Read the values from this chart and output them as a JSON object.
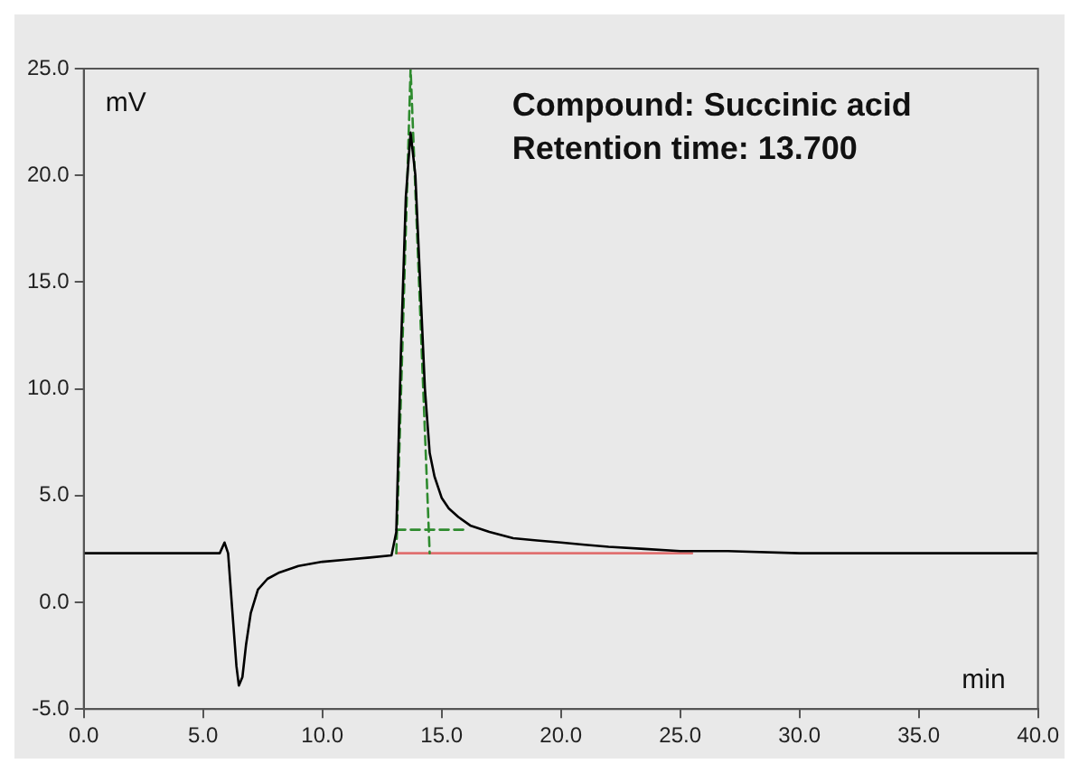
{
  "chart_data": {
    "type": "line",
    "xlabel": "min",
    "ylabel": "mV",
    "annotations": [
      "Compound: Succinic acid",
      "Retention time: 13.700"
    ],
    "xlim": [
      0,
      40
    ],
    "ylim": [
      -5,
      25
    ],
    "xticks": [
      {
        "value": 0,
        "label": "0.0"
      },
      {
        "value": 5,
        "label": "5.0"
      },
      {
        "value": 10,
        "label": "10.0"
      },
      {
        "value": 15,
        "label": "15.0"
      },
      {
        "value": 20,
        "label": "20.0"
      },
      {
        "value": 25,
        "label": "25.0"
      },
      {
        "value": 30,
        "label": "30.0"
      },
      {
        "value": 35,
        "label": "35.0"
      },
      {
        "value": 40,
        "label": "40.0"
      }
    ],
    "yticks": [
      {
        "value": -5,
        "label": "-5.0"
      },
      {
        "value": 0,
        "label": "0.0"
      },
      {
        "value": 5,
        "label": "5.0"
      },
      {
        "value": 10,
        "label": "10.0"
      },
      {
        "value": 15,
        "label": "15.0"
      },
      {
        "value": 20,
        "label": "20.0"
      },
      {
        "value": 25,
        "label": "25.0"
      }
    ],
    "grid": false,
    "legend": false,
    "marker": "none",
    "series": [
      {
        "color": "#000000",
        "line_style": "solid",
        "x": [
          0,
          5.7,
          5.9,
          6.05,
          6.2,
          6.4,
          6.5,
          6.65,
          6.8,
          7.0,
          7.3,
          7.7,
          8.2,
          9,
          10,
          11,
          12,
          12.9,
          13.1,
          13.3,
          13.5,
          13.7,
          13.9,
          14.1,
          14.3,
          14.5,
          14.7,
          15.0,
          15.3,
          15.7,
          16.2,
          17,
          18,
          19,
          20,
          21,
          22,
          23.5,
          25,
          27,
          30,
          35,
          40
        ],
        "values": [
          2.3,
          2.3,
          2.8,
          2.3,
          0,
          -3,
          -3.9,
          -3.5,
          -2,
          -0.5,
          0.6,
          1.1,
          1.4,
          1.7,
          1.9,
          2.0,
          2.1,
          2.2,
          3.3,
          12,
          19,
          22,
          20,
          15,
          10,
          7,
          5.9,
          4.9,
          4.4,
          4.0,
          3.6,
          3.3,
          3.0,
          2.9,
          2.8,
          2.7,
          2.6,
          2.5,
          2.4,
          2.4,
          2.3,
          2.3,
          2.3
        ]
      },
      {
        "color": "#2e8b2e",
        "line_style": "dashed",
        "x": [
          13.1,
          13.7,
          14.5
        ],
        "values": [
          2.3,
          25,
          2.3
        ]
      },
      {
        "color": "#2e8b2e",
        "line_style": "dashed",
        "x": [
          13.1,
          16.0
        ],
        "values": [
          3.4,
          3.4
        ]
      },
      {
        "color": "#e07070",
        "line_style": "solid",
        "x": [
          13.1,
          25.5
        ],
        "values": [
          2.3,
          2.3
        ]
      }
    ]
  }
}
